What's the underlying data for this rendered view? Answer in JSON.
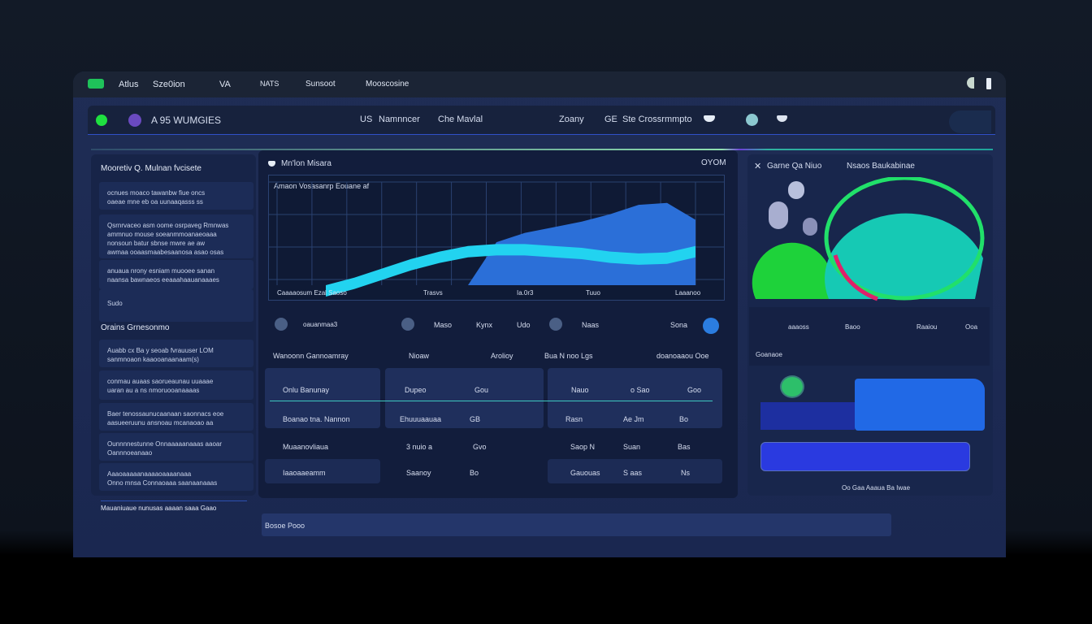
{
  "titlebar": {
    "items": [
      "Atlus",
      "Sze0ion",
      "VA",
      "NATS",
      "Sunsoot",
      "Mooscosine"
    ]
  },
  "header": {
    "title": "A 95 WUMGIES",
    "items": [
      "US",
      "Namnncer",
      "Che Mavlal",
      "Zoany",
      "GE",
      "Ste Crossrmmpto"
    ]
  },
  "left_panel": {
    "title": "Mooretiv Q. Mulnan fvcisete",
    "items": [
      [
        "ocnues moaco tawanbw fiue oncs",
        "oaeae mne eb oa uunaaqasss ss"
      ],
      [
        "Qsrnrvaceo asm oome osrpaveg Rmnwas",
        "ammnuo mouse soeanmmoanaeoaaa",
        "nonsoun batur sbnse mwre ae aw",
        "awmaa ooaasmaabesaanosa asao osas"
      ],
      [
        "anuaua nrony esniam muooee sanan",
        "naansa bawnaeos eeaaahaauanaaaes"
      ],
      [
        "Sudo"
      ]
    ],
    "section": "Orains Grnesonmo",
    "section_items": [
      [
        "Auabb cx Ba y seoab fvrauuser LOM",
        "sanmnoaon kaaooanaanaam(s)"
      ],
      [
        "conmau auaas saorueaunau uuaaae",
        "uaran au a ns nmoruooanaaaas"
      ],
      [
        "Baer tenossaunucaanaan saonnacs eoe",
        "aasueeruunu ansnoau mcanaoao aa"
      ],
      [
        "Ounnnnestunne Onnaaaaanaaas aaoar",
        "Oannnoeanaao"
      ],
      [
        "Aaaoaaaaanaaaaoaaaanaaa",
        "Onno mnsa Connaoaaa saanaanaaas"
      ]
    ],
    "footer": "Mauaniuaue nunusas aaaan saaa Gaao"
  },
  "center_panel": {
    "title": "Mn'lon Misara",
    "right_label": "OYOM",
    "toolbar": [
      "oauanmaa3",
      "Maso",
      "Kynx",
      "Udo",
      "Naas",
      "Sona"
    ],
    "headers": [
      "Wanoonn Gannoamray",
      "Nioaw",
      "Arolioy",
      "Bua N noo Lgs",
      "doanoaaou Ooe"
    ],
    "rows": [
      [
        "Onlu Banunay",
        "Dupeo",
        "Gou",
        "Nauo",
        "o Sao",
        "Goo"
      ],
      [
        "Boanao tna. Nannon",
        "Ehuuuaauaa",
        "GB",
        "Rasn",
        "Ae Jm",
        "Bo"
      ],
      [
        "Muaanovliaua",
        "3 nuio a",
        "Gvo",
        "Saop N",
        "Suan",
        "Bas"
      ],
      [
        "Iaaoaaeamm",
        "Saanoy",
        "Bo",
        "Gauouas",
        "S aas",
        "Ns"
      ]
    ]
  },
  "chart_data": {
    "type": "area",
    "title": "Amaon Vosasanrp Eouane af",
    "x_labels": [
      "Caaaaosum Ezal Saoso",
      "Trasvs",
      "Ia.0r3",
      "Tuuo",
      "Laaanoo"
    ],
    "series": [
      {
        "values": [
          0.0,
          0.08,
          0.18,
          0.28,
          0.36,
          0.42,
          0.44,
          0.44,
          0.42,
          0.4,
          0.36,
          0.34,
          0.35,
          0.42
        ],
        "color": "#22d3f0"
      },
      {
        "values": [
          0,
          0,
          0,
          0,
          0,
          0,
          0.46,
          0.56,
          0.62,
          0.68,
          0.76,
          0.86,
          0.88,
          0.7
        ],
        "color": "#2b6fd8"
      }
    ],
    "grid": true
  },
  "right_panel": {
    "title": "Garne Qa Niuo",
    "subtitle": "Nsaos Baukabinae",
    "row_labels": [
      "aaaoss",
      "Baoo",
      "Raaiou",
      "Ooa"
    ],
    "section": "Goanaoe",
    "footer": "Oo Gaa Aaaua Ba Iwae"
  },
  "bottom_bar": {
    "label": "Bosoe Pooo"
  },
  "colors": {
    "accent": "#1fe06a",
    "blue": "#2b6fd8",
    "cyan": "#22d3f0"
  }
}
